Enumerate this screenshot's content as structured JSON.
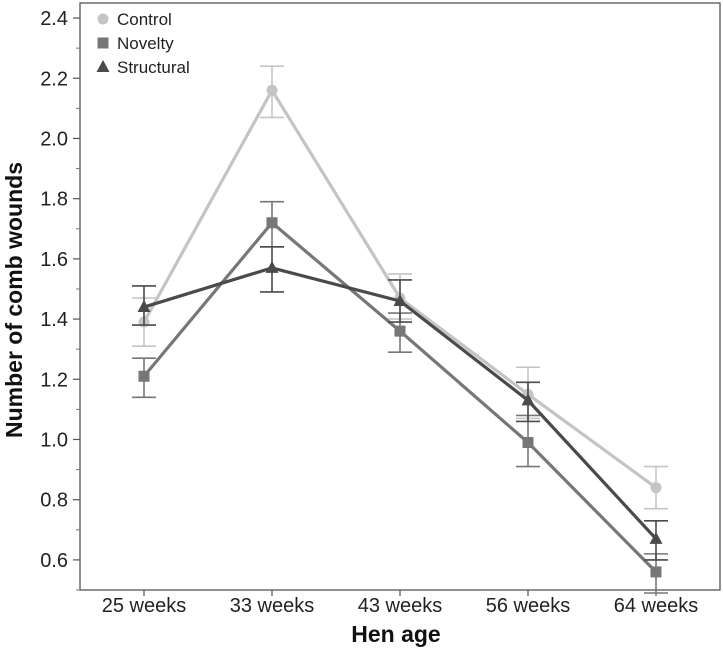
{
  "chart_data": {
    "type": "line",
    "title": "",
    "xlabel": "Hen age",
    "ylabel": "Number of comb wounds",
    "categories": [
      "25 weeks",
      "33 weeks",
      "43 weeks",
      "56 weeks",
      "64 weeks"
    ],
    "ylim": [
      0.5,
      2.45
    ],
    "yticks": [
      0.6,
      0.8,
      1.0,
      1.2,
      1.4,
      1.6,
      1.8,
      2.0,
      2.2,
      2.4
    ],
    "ytick_labels": [
      "0.6",
      "0.8",
      "1.0",
      "1.2",
      "1.4",
      "1.6",
      "1.8",
      "2.0",
      "2.2",
      "2.4"
    ],
    "grid": false,
    "legend_position": "top-left",
    "series": [
      {
        "name": "Control",
        "marker": "circle",
        "color": "#c4c4c4",
        "values": [
          1.39,
          2.16,
          1.47,
          1.15,
          0.84
        ],
        "err_low": [
          1.31,
          2.07,
          1.4,
          1.07,
          0.77
        ],
        "err_high": [
          1.47,
          2.24,
          1.55,
          1.24,
          0.91
        ]
      },
      {
        "name": "Novelty",
        "marker": "square",
        "color": "#777777",
        "values": [
          1.21,
          1.72,
          1.36,
          0.99,
          0.56
        ],
        "err_low": [
          1.14,
          1.64,
          1.29,
          0.91,
          0.49
        ],
        "err_high": [
          1.27,
          1.79,
          1.42,
          1.08,
          0.62
        ]
      },
      {
        "name": "Structural",
        "marker": "triangle",
        "color": "#4a4a4a",
        "values": [
          1.44,
          1.57,
          1.46,
          1.13,
          0.67
        ],
        "err_low": [
          1.38,
          1.49,
          1.39,
          1.06,
          0.6
        ],
        "err_high": [
          1.51,
          1.64,
          1.53,
          1.19,
          0.73
        ]
      }
    ]
  }
}
